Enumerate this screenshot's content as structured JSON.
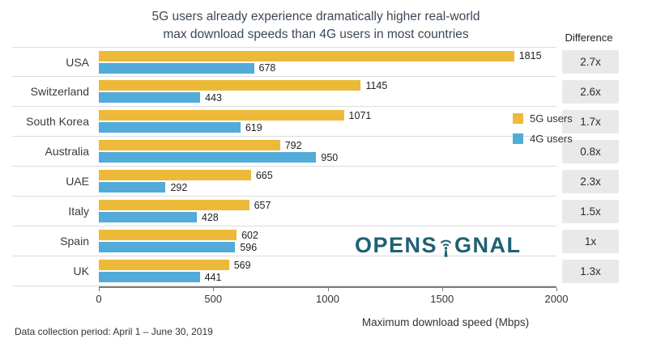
{
  "title": {
    "line1": "5G users already experience dramatically higher real-world",
    "line2": "max download speeds than 4G users in most countries"
  },
  "difference_header": "Difference",
  "legend": {
    "five_g": "5G users",
    "four_g": "4G users"
  },
  "logo": {
    "part1": "OPENS",
    "part2": "GNAL",
    "full": "OPENSIGNAL"
  },
  "xlabel": "Maximum download speed (Mbps)",
  "footer": "Data collection period: April 1 – June 30, 2019",
  "colors": {
    "five_g": "#EDB939",
    "four_g": "#52ABD8",
    "logo": "#1C6272",
    "diff_bg": "#E9E9E9",
    "title_text": "#3C4856"
  },
  "chart_data": {
    "type": "bar",
    "orientation": "horizontal",
    "title": "5G users already experience dramatically higher real-world max download speeds than 4G users in most countries",
    "xlabel": "Maximum download speed (Mbps)",
    "categories": [
      "USA",
      "Switzerland",
      "South Korea",
      "Australia",
      "UAE",
      "Italy",
      "Spain",
      "UK"
    ],
    "series": [
      {
        "name": "5G users",
        "values": [
          1815,
          1145,
          1071,
          792,
          665,
          657,
          602,
          569
        ]
      },
      {
        "name": "4G users",
        "values": [
          678,
          443,
          619,
          950,
          292,
          428,
          596,
          441
        ]
      }
    ],
    "difference": [
      "2.7x",
      "2.6x",
      "1.7x",
      "0.8x",
      "2.3x",
      "1.5x",
      "1x",
      "1.3x"
    ],
    "xlim": [
      0,
      2000
    ],
    "xticks": [
      0,
      500,
      1000,
      1500,
      2000
    ],
    "legend_position": "right-inside",
    "grid": false
  }
}
